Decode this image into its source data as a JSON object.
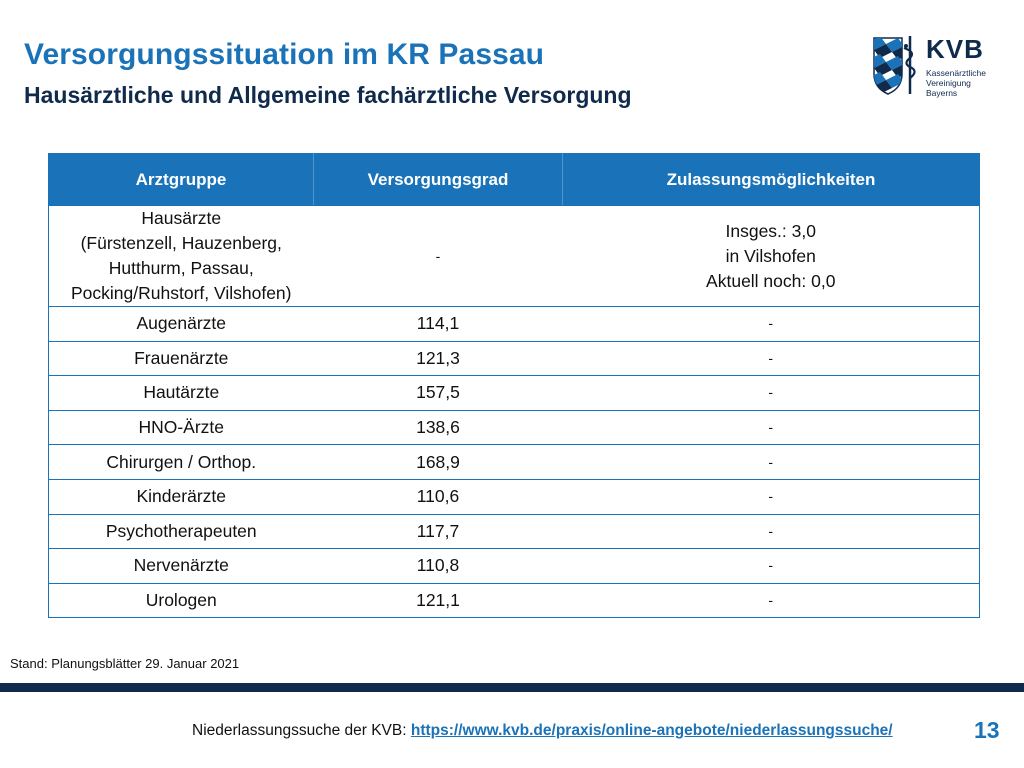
{
  "header": {
    "title": "Versorgungssituation im KR Passau",
    "subtitle": "Hausärztliche und Allgemeine fachärztliche Versorgung"
  },
  "logo": {
    "name": "KVB",
    "line1": "Kassenärztliche",
    "line2": "Vereinigung",
    "line3": "Bayerns"
  },
  "table": {
    "headers": [
      "Arztgruppe",
      "Versorgungsgrad",
      "Zulassungsmöglichkeiten"
    ],
    "first_row": {
      "group_lines": [
        "Hausärzte",
        "(Fürstenzell, Hauzenberg,",
        "Hutthurm, Passau,",
        "Pocking/Ruhstorf, Vilshofen)"
      ],
      "grade": "-",
      "admission_lines": [
        "Insges.: 3,0",
        "in Vilshofen",
        "Aktuell noch: 0,0"
      ]
    },
    "rows": [
      {
        "group": "Augenärzte",
        "grade": "114,1",
        "admission": "-"
      },
      {
        "group": "Frauenärzte",
        "grade": "121,3",
        "admission": "-"
      },
      {
        "group": "Hautärzte",
        "grade": "157,5",
        "admission": "-"
      },
      {
        "group": "HNO-Ärzte",
        "grade": "138,6",
        "admission": "-"
      },
      {
        "group": "Chirurgen / Orthop.",
        "grade": "168,9",
        "admission": "-"
      },
      {
        "group": "Kinderärzte",
        "grade": "110,6",
        "admission": "-"
      },
      {
        "group": "Psychotherapeuten",
        "grade": "117,7",
        "admission": "-"
      },
      {
        "group": "Nervenärzte",
        "grade": "110,8",
        "admission": "-"
      },
      {
        "group": "Urologen",
        "grade": "121,1",
        "admission": "-"
      }
    ]
  },
  "stand_text": "Stand: Planungsblätter 29. Januar 2021",
  "footer": {
    "prefix": "Niederlassungssuche der KVB:",
    "link_text": "https://www.kvb.de/praxis/online-angebote/niederlassungssuche/"
  },
  "page_number": "13",
  "colors": {
    "accent_blue": "#1a73b8",
    "navy": "#102a4c"
  }
}
